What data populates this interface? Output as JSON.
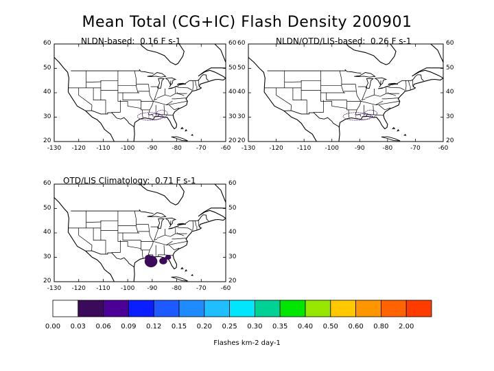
{
  "title": "Mean Total (CG+IC) Flash Density 200901",
  "panels": [
    {
      "title": "NLDN-based:  0.16 F s-1"
    },
    {
      "title": "NLDN/OTD/LIS-based:  0.26 F s-1"
    },
    {
      "title": "OTD/LIS Climatology:  0.71 F s-1"
    }
  ],
  "axes": {
    "x_ticks": [
      "-130",
      "-120",
      "-110",
      "-100",
      "-90",
      "-80",
      "-70",
      "-60"
    ],
    "y_ticks": [
      "60",
      "50",
      "40",
      "30",
      "20"
    ]
  },
  "colorbar": {
    "colors": [
      "#ffffff",
      "#3c0a5a",
      "#4b0096",
      "#0a1eff",
      "#1e5aff",
      "#1e8cff",
      "#1ebeff",
      "#00e6ff",
      "#00d296",
      "#00e600",
      "#96e600",
      "#ffc800",
      "#ff9600",
      "#ff6400",
      "#ff3c00"
    ],
    "labels": [
      "0.00",
      "0.03",
      "0.06",
      "0.09",
      "0.12",
      "0.15",
      "0.20",
      "0.25",
      "0.30",
      "0.35",
      "0.40",
      "0.50",
      "0.60",
      "0.80",
      "2.00"
    ],
    "units": "Flashes km-2 day-1"
  }
}
